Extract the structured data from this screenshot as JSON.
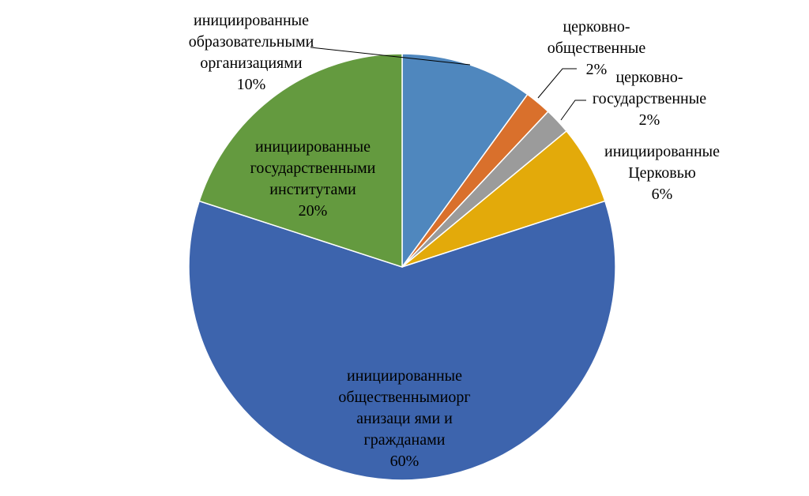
{
  "chart_data": {
    "type": "pie",
    "title": "",
    "slices": [
      {
        "key": "educational",
        "value": 10,
        "percent_label": "10%",
        "label_lines": [
          "инициированные",
          "образовательными",
          "организациями"
        ],
        "color": "#4F87BE"
      },
      {
        "key": "church-public",
        "value": 2,
        "percent_label": "2%",
        "label_lines": [
          "церковно-",
          "общественные"
        ],
        "color": "#D9702C"
      },
      {
        "key": "church-state",
        "value": 2,
        "percent_label": "2%",
        "label_lines": [
          "церковно-",
          "государственные"
        ],
        "color": "#9B9B9B"
      },
      {
        "key": "church",
        "value": 6,
        "percent_label": "6%",
        "label_lines": [
          "инициированные",
          "Церковью"
        ],
        "color": "#E3AA0A"
      },
      {
        "key": "public-orgs",
        "value": 60,
        "percent_label": "60%",
        "label_lines": [
          "инициированные",
          "общественнымиорг",
          "анизаци ями и",
          "гражданами"
        ],
        "color": "#3D64AD"
      },
      {
        "key": "state-institutes",
        "value": 20,
        "percent_label": "20%",
        "label_lines": [
          "инициированные",
          "государственными",
          "институтами"
        ],
        "color": "#649A3F"
      }
    ]
  }
}
